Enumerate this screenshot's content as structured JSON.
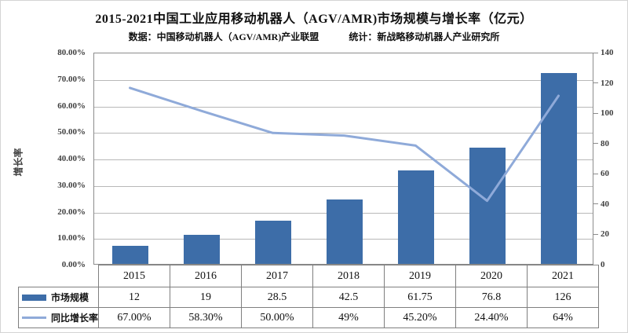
{
  "title": "2015-2021中国工业应用移动机器人（AGV/AMR)市场规模与增长率（亿元）",
  "subtitle": {
    "source": "数据：中国移动机器人（AGV/AMR)产业联盟",
    "stats": "统计：新战略移动机器人产业研究所"
  },
  "colors": {
    "bar": "#3d6da8",
    "line": "#8faad9",
    "grid": "#b8b8b8",
    "axis_border": "#8c8c8c",
    "table_border": "#7f7f7f",
    "label": "#404040"
  },
  "chart_data": {
    "type": "bar",
    "title": "2015-2021中国工业应用移动机器人（AGV/AMR)市场规模与增长率（亿元）",
    "categories": [
      "2015",
      "2016",
      "2017",
      "2018",
      "2019",
      "2020",
      "2021"
    ],
    "series": [
      {
        "name": "市场规模",
        "chart": "bar",
        "axis": "right",
        "values": [
          12,
          19,
          28.5,
          42.5,
          61.75,
          76.8,
          126
        ],
        "display_values": [
          "12",
          "19",
          "28.5",
          "42.5",
          "61.75",
          "76.8",
          "126"
        ]
      },
      {
        "name": "同比增长率",
        "chart": "line",
        "axis": "left",
        "values": [
          67.0,
          58.3,
          50.0,
          49.0,
          45.2,
          24.4,
          64.0
        ],
        "display_values": [
          "67.00%",
          "58.30%",
          "50.00%",
          "49%",
          "45.20%",
          "24.40%",
          "64%"
        ]
      }
    ],
    "left_axis": {
      "title": "增长率",
      "min": 0,
      "max": 80,
      "step": 10,
      "ticks": [
        "0.00%",
        "10.00%",
        "20.00%",
        "30.00%",
        "40.00%",
        "50.00%",
        "60.00%",
        "70.00%",
        "80.00%"
      ]
    },
    "right_axis": {
      "min": 0,
      "max": 140,
      "step": 20,
      "ticks": [
        "0",
        "20",
        "40",
        "60",
        "80",
        "100",
        "120",
        "140"
      ]
    },
    "grid": true,
    "legend_position": "left-of-data-table",
    "ylim_left": [
      0,
      80
    ],
    "ylim_right": [
      0,
      140
    ]
  }
}
